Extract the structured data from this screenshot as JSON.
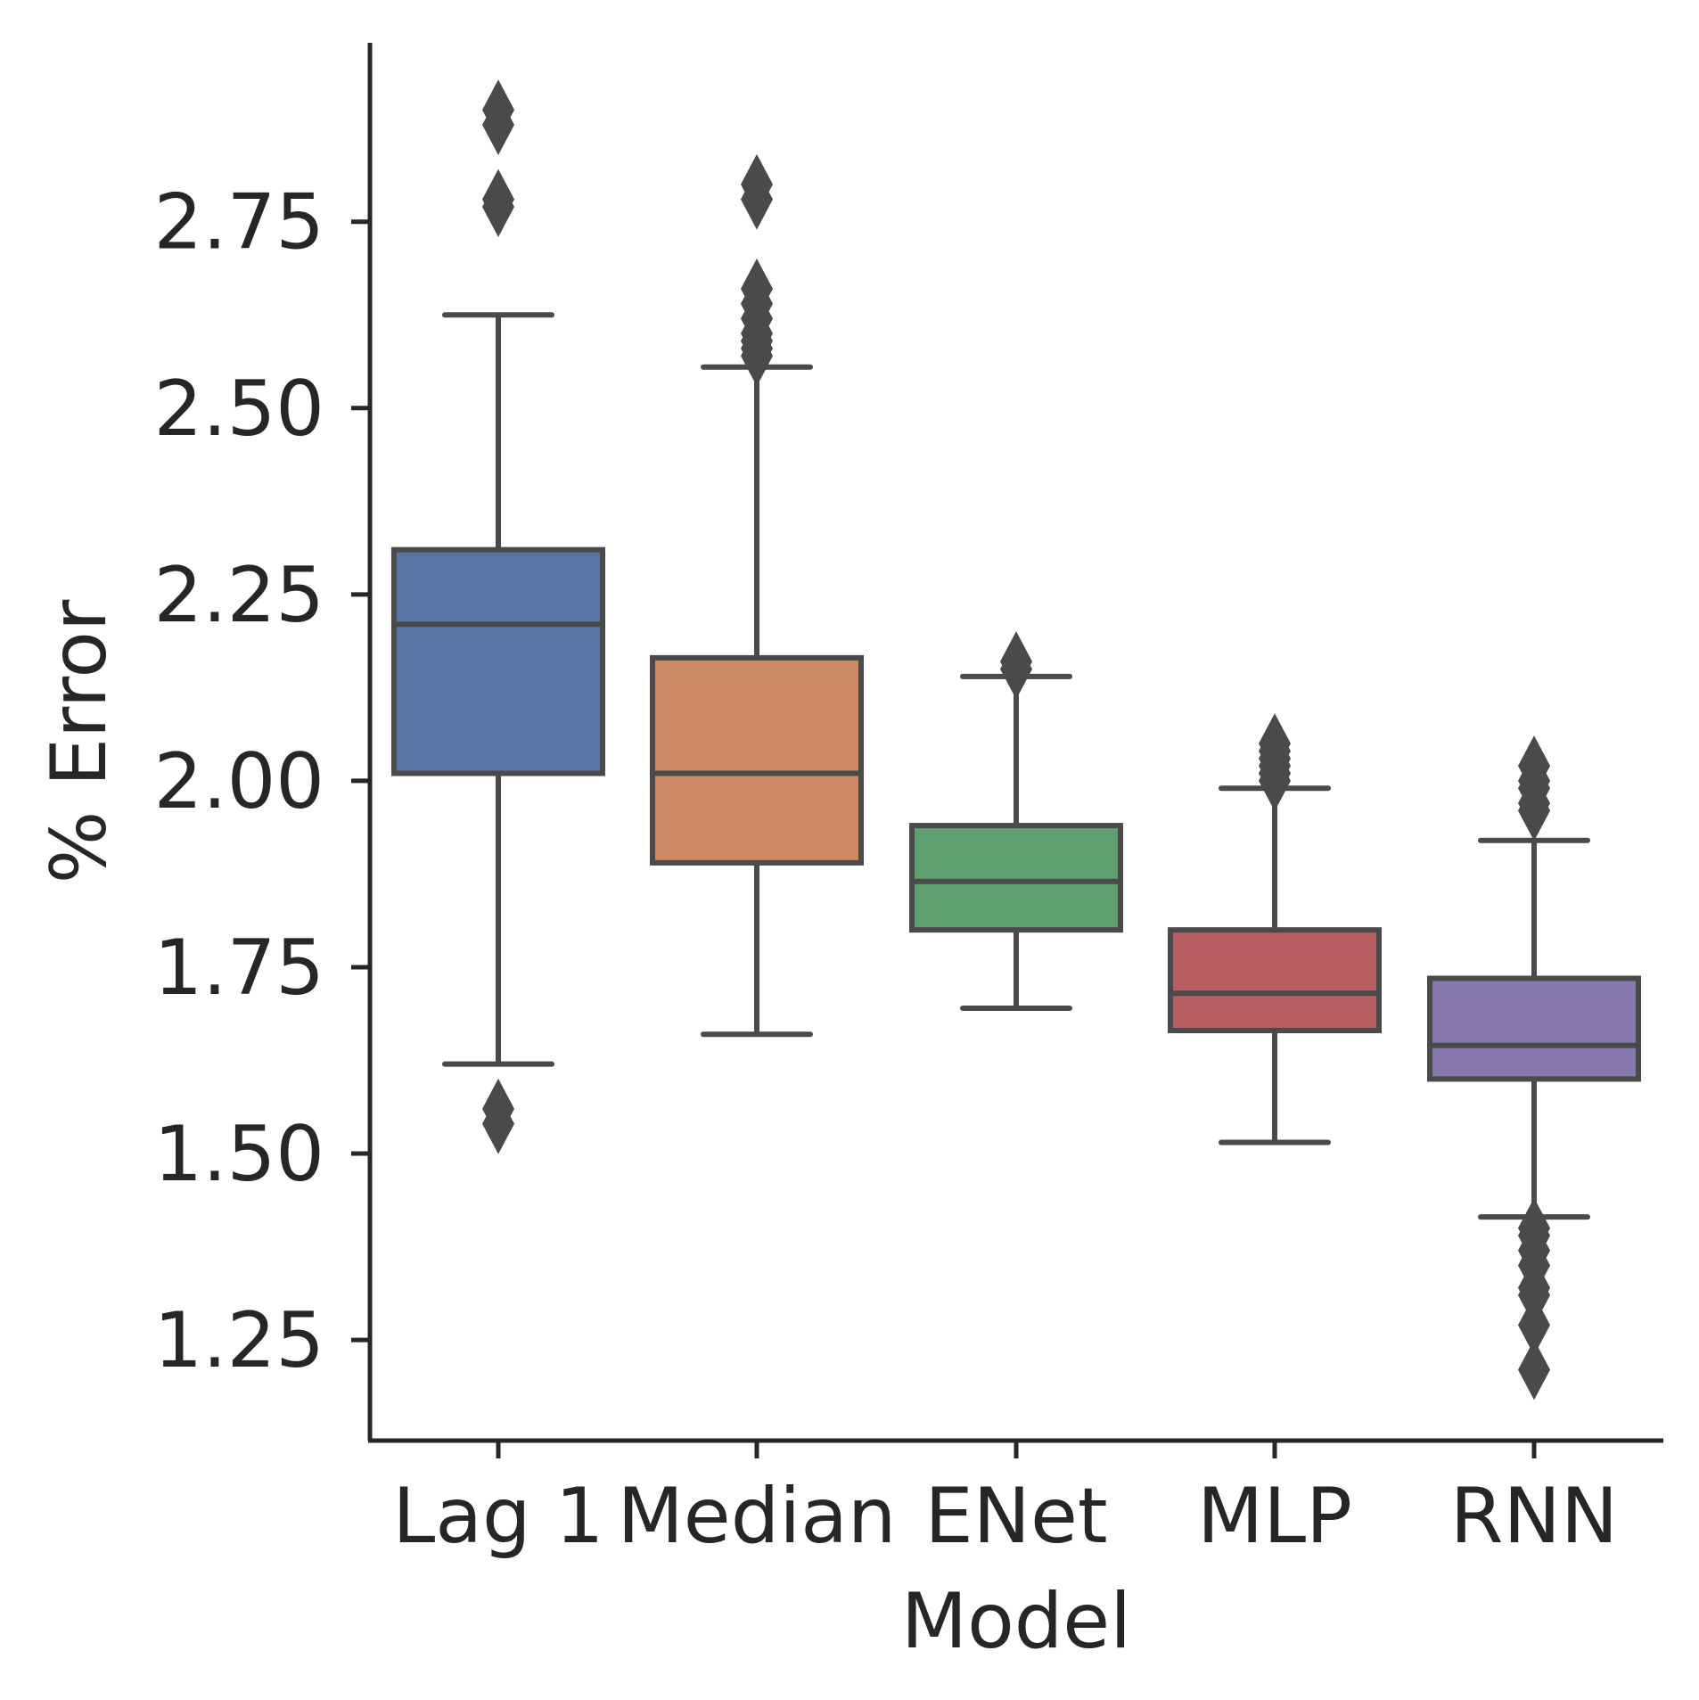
{
  "chart_data": {
    "type": "box",
    "xlabel": "Model",
    "ylabel": "% Error",
    "ylim": [
      1.115,
      2.99
    ],
    "y_ticks": [
      "1.25",
      "1.50",
      "1.75",
      "2.00",
      "2.25",
      "2.50",
      "2.75"
    ],
    "grid": false,
    "outlier_color": "#4a4a4a",
    "series": [
      {
        "category": "Lag 1",
        "color": "#5975a4",
        "whisker_low": 1.62,
        "q1": 2.01,
        "median": 2.21,
        "q3": 2.31,
        "whisker_high": 2.625,
        "outliers": [
          2.9,
          2.88,
          2.78,
          2.77,
          1.56,
          1.54
        ]
      },
      {
        "category": "Median",
        "color": "#cc8963",
        "whisker_low": 1.66,
        "q1": 1.89,
        "median": 2.01,
        "q3": 2.165,
        "whisker_high": 2.555,
        "outliers": [
          2.8,
          2.78,
          2.66,
          2.64,
          2.62,
          2.6,
          2.59,
          2.58,
          2.57
        ]
      },
      {
        "category": "ENet",
        "color": "#5f9e6e",
        "whisker_low": 1.695,
        "q1": 1.8,
        "median": 1.865,
        "q3": 1.94,
        "whisker_high": 2.14,
        "outliers": [
          2.16,
          2.15
        ]
      },
      {
        "category": "MLP",
        "color": "#b55d60",
        "whisker_low": 1.515,
        "q1": 1.665,
        "median": 1.715,
        "q3": 1.8,
        "whisker_high": 1.99,
        "outliers": [
          2.05,
          2.04,
          2.03,
          2.02,
          2.01,
          2.0
        ]
      },
      {
        "category": "RNN",
        "color": "#857aab",
        "whisker_low": 1.415,
        "q1": 1.6,
        "median": 1.645,
        "q3": 1.735,
        "whisker_high": 1.92,
        "outliers": [
          2.02,
          2.0,
          1.99,
          1.97,
          1.96,
          1.4,
          1.39,
          1.37,
          1.35,
          1.32,
          1.31,
          1.27,
          1.21
        ]
      }
    ]
  }
}
